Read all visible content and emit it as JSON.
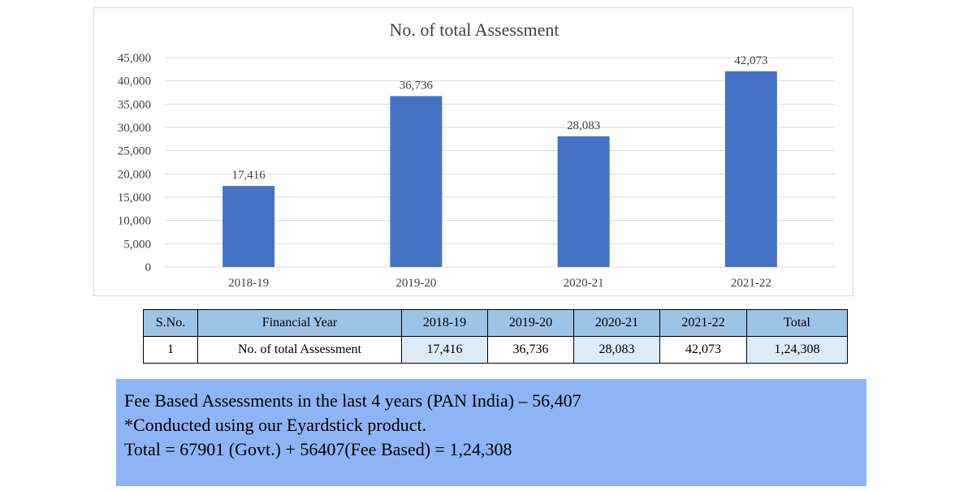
{
  "chart_data": {
    "type": "bar",
    "title": "No. of total Assessment",
    "categories": [
      "2018-19",
      "2019-20",
      "2020-21",
      "2021-22"
    ],
    "values": [
      17416,
      36736,
      28083,
      42073
    ],
    "data_labels": [
      "17,416",
      "36,736",
      "28,083",
      "42,073"
    ],
    "ylim": [
      0,
      45000
    ],
    "yticks": [
      0,
      5000,
      10000,
      15000,
      20000,
      25000,
      30000,
      35000,
      40000,
      45000
    ],
    "ytick_labels": [
      "0",
      "5,000",
      "10,000",
      "15,000",
      "20,000",
      "25,000",
      "30,000",
      "35,000",
      "40,000",
      "45,000"
    ],
    "grid": true,
    "bar_color": "#4472c4"
  },
  "table": {
    "headers": [
      "S.No.",
      "Financial Year",
      "2018-19",
      "2019-20",
      "2020-21",
      "2021-22",
      "Total"
    ],
    "rows": [
      [
        "1",
        "No. of total Assessment",
        "17,416",
        "36,736",
        "28,083",
        "42,073",
        "1,24,308"
      ]
    ]
  },
  "note": {
    "lines": [
      "Fee Based Assessments in the last 4 years (PAN India) – 56,407",
      "*Conducted using our Eyardstick product.",
      "Total = 67901 (Govt.) + 56407(Fee Based) = 1,24,308"
    ]
  },
  "colors": {
    "header_fill": "#9dc3e6",
    "row_fill": "#deebf7",
    "note_fill": "#8fb4f5"
  }
}
